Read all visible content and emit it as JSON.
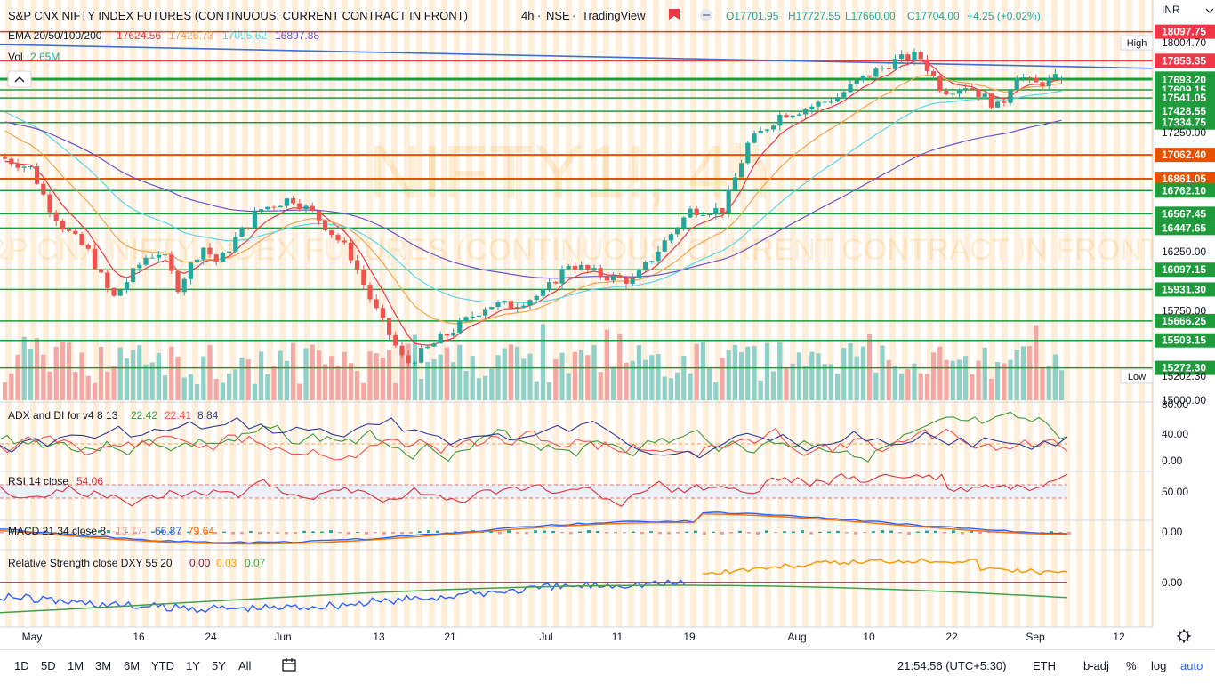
{
  "header": {
    "symbol": "S&P CNX NIFTY INDEX FUTURES (CONTINUOUS: CURRENT CONTRACT IN FRONT)",
    "interval": "4h",
    "exchange": "NSE",
    "platform": "TradingView",
    "ohlc": {
      "o": "O17701.95",
      "h": "H17727.55",
      "l": "L17660.00",
      "c": "C17704.00",
      "chg": "+4.25 (+0.02%)"
    },
    "currency": "INR"
  },
  "watermark": {
    "big": "NIFTY1!, 4h",
    "small": "S&P CNX NIFTY INDEX FUTURES (CONTINUOUS: CURRENT CONTRACT IN FRONT)"
  },
  "ema_legend": {
    "label": "EMA 20/50/100/200",
    "v20": "17624.56",
    "v50": "17426.73",
    "v100": "17095.62",
    "v200": "16897.88"
  },
  "vol_legend": {
    "label": "Vol",
    "value": "2.65M"
  },
  "price_axis_labels": [
    "17250.00",
    "16250.00",
    "15750.00",
    "15000.00"
  ],
  "price_tags": [
    {
      "text": "18097.75",
      "style": "red"
    },
    {
      "text": "18004.70",
      "style": "plain",
      "tag": "High"
    },
    {
      "text": "17853.35",
      "style": "red"
    },
    {
      "text": "17704.00",
      "style": "green"
    },
    {
      "text": "17693.20",
      "style": "green"
    },
    {
      "text": "17609.15",
      "style": "green"
    },
    {
      "text": "17541.05",
      "style": "green"
    },
    {
      "text": "17428.55",
      "style": "green"
    },
    {
      "text": "17334.75",
      "style": "green"
    },
    {
      "text": "17062.40",
      "style": "orange"
    },
    {
      "text": "16861.05",
      "style": "orange"
    },
    {
      "text": "16762.10",
      "style": "green"
    },
    {
      "text": "16567.45",
      "style": "green"
    },
    {
      "text": "16447.65",
      "style": "green"
    },
    {
      "text": "16097.15",
      "style": "green"
    },
    {
      "text": "15931.30",
      "style": "green"
    },
    {
      "text": "15666.25",
      "style": "green"
    },
    {
      "text": "15503.15",
      "style": "green"
    },
    {
      "text": "15272.30",
      "style": "green"
    },
    {
      "text": "15202.30",
      "style": "plain",
      "tag": "Low"
    }
  ],
  "indicators": {
    "adx": {
      "label": "ADX and DI for v4 8 13",
      "v1": "22.42",
      "v2": "22.41",
      "v3": "8.84",
      "axis": [
        "80.00",
        "40.00",
        "0.00"
      ]
    },
    "rsi": {
      "label": "RSI 14 close",
      "v": "54.06",
      "axis": [
        "50.00"
      ]
    },
    "macd": {
      "label": "MACD 21 34 close 8",
      "v1": "-13.77",
      "v2": "66.87",
      "v3": "79.64",
      "axis": [
        "0.00"
      ]
    },
    "rs": {
      "label": "Relative Strength close DXY 55 20",
      "v1": "0.00",
      "v2": "0.03",
      "v3": "0.07",
      "axis": [
        "0.00"
      ]
    }
  },
  "time_axis": [
    "May",
    "16",
    "24",
    "Jun",
    "13",
    "21",
    "Jul",
    "11",
    "19",
    "Aug",
    "10",
    "22",
    "Sep",
    "12"
  ],
  "bottom_bar": {
    "timeframes": [
      "1D",
      "5D",
      "1M",
      "3M",
      "6M",
      "YTD",
      "1Y",
      "5Y",
      "All"
    ],
    "clock": "21:54:56 (UTC+5:30)",
    "session": "ETH",
    "options": [
      "b-adj",
      "%",
      "log",
      "auto"
    ]
  },
  "colors": {
    "up": "#26a69a",
    "down": "#ef5350",
    "ema20": "#f23645",
    "ema50": "#f7a14a",
    "ema100": "#5ad5e6",
    "ema200": "#6a55c9",
    "hline_green": "#1e9c3c",
    "hline_red": "#e53935",
    "hline_orange": "#e65100",
    "accent": "#2962ff"
  },
  "chart_data": {
    "type": "candlestick",
    "title": "S&P CNX NIFTY INDEX FUTURES (CONTINUOUS: CURRENT CONTRACT IN FRONT)",
    "interval": "4h",
    "xlabel": "",
    "ylabel": "",
    "ylim": [
      15000,
      18100
    ],
    "x_ticks": [
      "May",
      "16",
      "24",
      "Jun",
      "13",
      "21",
      "Jul",
      "11",
      "19",
      "Aug",
      "10",
      "22",
      "Sep",
      "12"
    ],
    "close_path": [
      {
        "x": "Apr 28",
        "y": 17050
      },
      {
        "x": "May 2",
        "y": 16950
      },
      {
        "x": "May 4",
        "y": 16650
      },
      {
        "x": "May 6",
        "y": 16450
      },
      {
        "x": "May 9",
        "y": 16250
      },
      {
        "x": "May 12",
        "y": 15850
      },
      {
        "x": "May 16",
        "y": 16200
      },
      {
        "x": "May 18",
        "y": 16250
      },
      {
        "x": "May 20",
        "y": 15950
      },
      {
        "x": "May 23",
        "y": 16300
      },
      {
        "x": "May 25",
        "y": 16150
      },
      {
        "x": "May 27",
        "y": 16350
      },
      {
        "x": "May 30",
        "y": 16600
      },
      {
        "x": "Jun 3",
        "y": 16700
      },
      {
        "x": "Jun 6",
        "y": 16550
      },
      {
        "x": "Jun 8",
        "y": 16400
      },
      {
        "x": "Jun 10",
        "y": 16250
      },
      {
        "x": "Jun 13",
        "y": 15800
      },
      {
        "x": "Jun 17",
        "y": 15300
      },
      {
        "x": "Jun 20",
        "y": 15450
      },
      {
        "x": "Jun 23",
        "y": 15600
      },
      {
        "x": "Jun 27",
        "y": 15800
      },
      {
        "x": "Jun 30",
        "y": 15800
      },
      {
        "x": "Jul 4",
        "y": 15900
      },
      {
        "x": "Jul 7",
        "y": 16150
      },
      {
        "x": "Jul 11",
        "y": 16050
      },
      {
        "x": "Jul 15",
        "y": 16000
      },
      {
        "x": "Jul 19",
        "y": 16350
      },
      {
        "x": "Jul 22",
        "y": 16600
      },
      {
        "x": "Jul 26",
        "y": 16600
      },
      {
        "x": "Jul 29",
        "y": 17150
      },
      {
        "x": "Aug 2",
        "y": 17400
      },
      {
        "x": "Aug 5",
        "y": 17450
      },
      {
        "x": "Aug 9",
        "y": 17550
      },
      {
        "x": "Aug 12",
        "y": 17700
      },
      {
        "x": "Aug 16",
        "y": 17850
      },
      {
        "x": "Aug 19",
        "y": 17900
      },
      {
        "x": "Aug 22",
        "y": 17600
      },
      {
        "x": "Aug 25",
        "y": 17650
      },
      {
        "x": "Aug 29",
        "y": 17450
      },
      {
        "x": "Aug 31",
        "y": 17750
      },
      {
        "x": "Sep 2",
        "y": 17650
      },
      {
        "x": "Sep 5",
        "y": 17704
      }
    ],
    "last": {
      "open": 17701.95,
      "high": 17727.55,
      "low": 17660.0,
      "close": 17704.0,
      "change": 4.25,
      "change_pct": 0.02
    },
    "ema": {
      "20": 17624.56,
      "50": 17426.73,
      "100": 17095.62,
      "200": 16897.88
    },
    "horizontal_levels": [
      18097.75,
      17853.35,
      17704.0,
      17693.2,
      17609.15,
      17541.05,
      17428.55,
      17334.75,
      17062.4,
      16861.05,
      16762.1,
      16567.45,
      16447.65,
      16097.15,
      15931.3,
      15666.25,
      15503.15,
      15272.3
    ],
    "high": 18004.7,
    "low": 15202.3,
    "volume_last": "2.65M"
  }
}
